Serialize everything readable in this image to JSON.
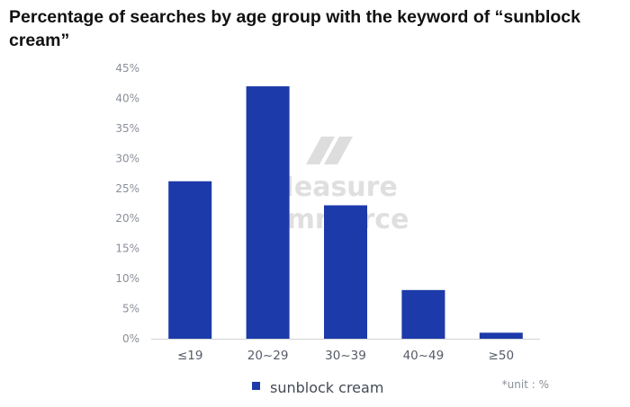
{
  "chart_data": {
    "type": "bar",
    "title": "Percentage of searches by age group with the keyword of “sunblock cream”",
    "categories": [
      "≤19",
      "20~29",
      "30~39",
      "40~49",
      "≥50"
    ],
    "series": [
      {
        "name": "sunblock cream",
        "values": [
          26.2,
          42.0,
          22.2,
          8.1,
          1.0
        ],
        "color": "#1c3aa9"
      }
    ],
    "ylim": [
      0,
      45
    ],
    "yticks": [
      "0%",
      "5%",
      "10%",
      "15%",
      "20%",
      "25%",
      "30%",
      "35%",
      "40%",
      "45%"
    ],
    "grid": false,
    "legend_position": "bottom-center",
    "note": "*unit : %"
  },
  "watermark": {
    "line1": "Measure",
    "line2": "Commerce",
    "icon": "measure-commerce-logo-icon"
  }
}
